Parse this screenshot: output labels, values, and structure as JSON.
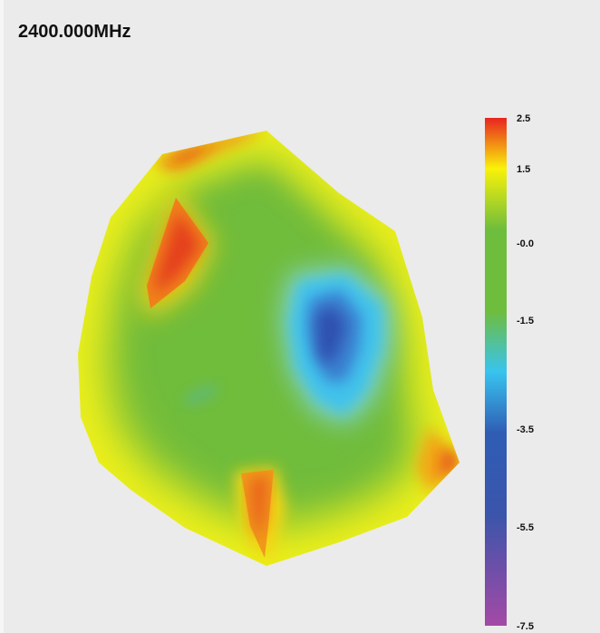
{
  "chart_data": {
    "type": "heatmap",
    "title": "2400.000MHz",
    "colorbar": {
      "range": [
        -7.5,
        2.5
      ],
      "tick_labels": [
        "2.5",
        "1.5",
        "-0.0",
        "-1.5",
        "-3.5",
        "-5.5",
        "-7.5"
      ],
      "tick_values": [
        2.5,
        1.5,
        0.0,
        -1.5,
        -3.5,
        -5.5,
        -7.5
      ],
      "colors": [
        "#e8241f",
        "#f9f20a",
        "#6fbd3c",
        "#6fbd3c",
        "#38c4ef",
        "#2f5db5",
        "#3a55ab",
        "#a449a6"
      ]
    },
    "regions": [
      {
        "name": "upper-left hotspot",
        "value": 2.3
      },
      {
        "name": "top edge hotspot",
        "value": 2.0
      },
      {
        "name": "bottom-center hotspot",
        "value": 2.2
      },
      {
        "name": "right edge hotspot",
        "value": 2.1
      },
      {
        "name": "center-right cold region",
        "value": -3.0
      },
      {
        "name": "background field",
        "value": 0.4
      }
    ]
  }
}
